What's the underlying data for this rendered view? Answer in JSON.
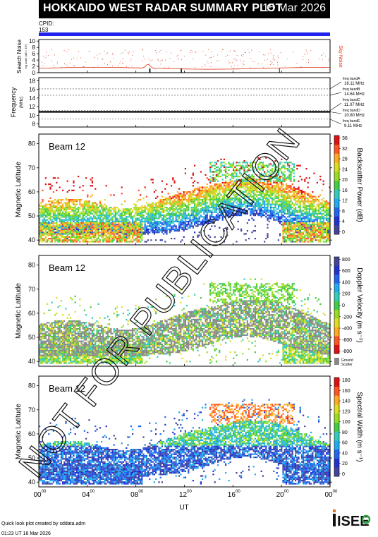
{
  "header": {
    "title": "HOKKAIDO WEST RADAR SUMMARY PLOT",
    "date": "15 Mar 2026",
    "cpid_label": "CPID:",
    "cpid_value": "153"
  },
  "noise_panel": {
    "ylabel": "Search Noise",
    "ylabel_sub": "log scale (dB × 10¹)",
    "yticks": [
      "0",
      "2",
      "4",
      "6",
      "8",
      "10"
    ],
    "right_label": "Sky Noise",
    "colors": {
      "noise": "#dd3311",
      "markers": "#000000"
    }
  },
  "freq_panel": {
    "ylabel": "Frequency",
    "ylabel_sub": "(MHz)",
    "yticks": [
      "8",
      "10",
      "12",
      "14",
      "16",
      "18"
    ],
    "bands": [
      {
        "label": "freq bandA",
        "value": "16.11 MHz"
      },
      {
        "label": "freq bandB",
        "value": "14.64 MHz"
      },
      {
        "label": "freq bandC",
        "value": "11.07 MHz"
      },
      {
        "label": "freq bandD",
        "value": "10.80 MHz"
      },
      {
        "label": "freq bandE",
        "value": "9.11 MHz"
      }
    ]
  },
  "panels": [
    {
      "beam_label": "Beam 12",
      "ylabel": "Magnetic Latitude",
      "yticks": [
        "40",
        "50",
        "60",
        "70",
        "80"
      ],
      "colorbar_label": "Backscatter Power (dB)",
      "colorbar_ticks": [
        "0",
        "4",
        "8",
        "12",
        "16",
        "20",
        "24",
        "28",
        "32",
        "36"
      ]
    },
    {
      "beam_label": "Beam 12",
      "ylabel": "Magnetic Latitude",
      "yticks": [
        "40",
        "50",
        "60",
        "70",
        "80"
      ],
      "colorbar_label": "Doppler Velocity (m s⁻¹)",
      "colorbar_ticks": [
        "-800",
        "-600",
        "-400",
        "-200",
        "0",
        "200",
        "400",
        "600",
        "800"
      ],
      "ground_scatter_label": [
        "Ground",
        "Scatter"
      ]
    },
    {
      "beam_label": "Beam 12",
      "ylabel": "Magnetic Latitude",
      "yticks": [
        "40",
        "50",
        "60",
        "70",
        "80"
      ],
      "colorbar_label": "Spectral Width (m s⁻¹)",
      "colorbar_ticks": [
        "0",
        "20",
        "40",
        "60",
        "80",
        "100",
        "120",
        "140",
        "160",
        "180"
      ]
    }
  ],
  "time_axis": {
    "label": "UT",
    "ticks": [
      {
        "hh": "00",
        "mm": "00"
      },
      {
        "hh": "04",
        "mm": "00"
      },
      {
        "hh": "08",
        "mm": "00"
      },
      {
        "hh": "12",
        "mm": "00"
      },
      {
        "hh": "16",
        "mm": "00"
      },
      {
        "hh": "20",
        "mm": "00"
      },
      {
        "hh": "00",
        "mm": "00"
      }
    ]
  },
  "footer": {
    "line1": "Quick look plot created by sddata.adm",
    "line2": "01:23 UT 16 Mar 2026"
  },
  "logo_text": "ISEE",
  "watermark": "NOT FOR PUBLICATION",
  "chart_data": {
    "type": "heatmap",
    "title": "HOKKAIDO WEST RADAR SUMMARY PLOT",
    "x_range_ut_hours": [
      0,
      24
    ],
    "y_range_mlat": [
      38,
      84
    ],
    "panels": [
      "Backscatter Power (dB)",
      "Doppler Velocity (m s⁻¹)",
      "Spectral Width (m s⁻¹)"
    ],
    "color_ranges": {
      "power": [
        0,
        36
      ],
      "velocity": [
        -800,
        800
      ],
      "width": [
        0,
        180
      ]
    },
    "frequency_bands_mhz": [
      16.11,
      14.64,
      11.07,
      10.8,
      9.11
    ],
    "colorscales": {
      "power": [
        "#444499",
        "#2233cc",
        "#2266ee",
        "#22aaee",
        "#33ccbb",
        "#44cc44",
        "#99dd22",
        "#dddd22",
        "#ffaa22",
        "#ff5522",
        "#dd1111"
      ],
      "velocity_hex": [
        "#dd1111",
        "#ff5522",
        "#ffaa22",
        "#dddd22",
        "#99dd22",
        "#44cc44",
        "#33ccbb",
        "#22aaee",
        "#2266ee",
        "#2233cc",
        "#444499"
      ],
      "ground": "#888888"
    }
  }
}
